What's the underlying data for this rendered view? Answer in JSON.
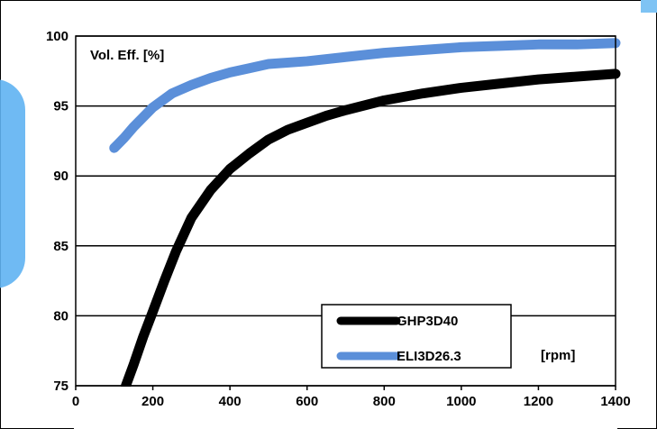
{
  "chart_data": {
    "type": "line",
    "title": "",
    "ylabel": "Vol. Eff.  [%]",
    "xlabel": "[rpm]",
    "xlim": [
      0,
      1400
    ],
    "ylim": [
      75,
      100
    ],
    "xticks": [
      0,
      200,
      400,
      600,
      800,
      1000,
      1200,
      1400
    ],
    "yticks": [
      75,
      80,
      85,
      90,
      95,
      100
    ],
    "grid": "horizontal",
    "legend_position": "bottom-right",
    "series": [
      {
        "name": "GHP3D40",
        "color": "#000000",
        "x": [
          130,
          150,
          175,
          200,
          230,
          260,
          300,
          350,
          400,
          450,
          500,
          550,
          600,
          650,
          700,
          800,
          900,
          1000,
          1100,
          1200,
          1300,
          1400
        ],
        "y": [
          75.0,
          76.5,
          78.5,
          80.3,
          82.5,
          84.6,
          87.0,
          89.0,
          90.5,
          91.6,
          92.6,
          93.3,
          93.8,
          94.3,
          94.7,
          95.4,
          95.9,
          96.3,
          96.6,
          96.9,
          97.1,
          97.3
        ]
      },
      {
        "name": "ELI3D26.3",
        "color": "#5b8fd9",
        "x": [
          100,
          125,
          150,
          175,
          200,
          250,
          300,
          350,
          400,
          450,
          500,
          600,
          700,
          800,
          900,
          1000,
          1100,
          1200,
          1300,
          1400
        ],
        "y": [
          92.0,
          92.7,
          93.5,
          94.2,
          94.9,
          95.9,
          96.5,
          97.0,
          97.4,
          97.7,
          98.0,
          98.2,
          98.5,
          98.8,
          99.0,
          99.2,
          99.3,
          99.4,
          99.4,
          99.5
        ]
      }
    ]
  }
}
